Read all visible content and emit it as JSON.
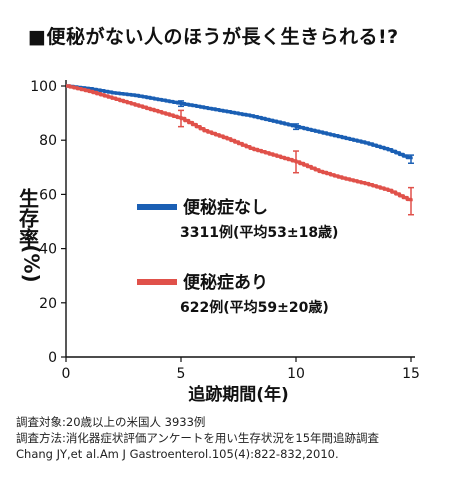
{
  "title": "■便秘がない人のほうが長く生きられる!?",
  "ylabel": {
    "main": "生存率",
    "unit": "(%)"
  },
  "notes": [
    "調査対象:20歳以上の米国人 3933例",
    "調査方法:消化器症状評価アンケートを用い生存状況を15年間追跡調査",
    "Chang JY,et al.Am J Gastroenterol.105(4):822-832,2010."
  ],
  "chart_data": {
    "type": "line",
    "xlabel": "追跡期間(年)",
    "ylabel": "生存率(%)",
    "xlim": [
      0,
      15
    ],
    "ylim": [
      0,
      100
    ],
    "xticks": [
      0,
      5,
      10,
      15
    ],
    "yticks": [
      0,
      20,
      40,
      60,
      80,
      100
    ],
    "grid": false,
    "legend_position": "center",
    "series": [
      {
        "name": "便秘症なし",
        "subtitle": "3311例(平均53±18歳)",
        "color": "#1a5fb4",
        "x": [
          0,
          1,
          2,
          3,
          4,
          5,
          6,
          7,
          8,
          9,
          10,
          11,
          12,
          13,
          14,
          15
        ],
        "y": [
          100,
          99,
          97.5,
          96.5,
          95,
          93.5,
          92,
          90.5,
          89,
          87,
          85,
          83,
          81,
          79,
          76.5,
          73
        ],
        "error_bars": [
          {
            "x": 5,
            "y": 93.5,
            "err": 1
          },
          {
            "x": 10,
            "y": 85,
            "err": 1
          },
          {
            "x": 15,
            "y": 73,
            "err": 1.5
          }
        ]
      },
      {
        "name": "便秘症あり",
        "subtitle": "622例(平均59±20歳)",
        "color": "#e0514a",
        "x": [
          0,
          1,
          2,
          3,
          4,
          5,
          6,
          7,
          8,
          9,
          10,
          11,
          12,
          13,
          14,
          15
        ],
        "y": [
          100,
          98,
          95.5,
          93,
          90.5,
          88,
          83.5,
          80.5,
          77,
          74.5,
          72,
          68.5,
          66,
          64,
          61.5,
          57.5
        ],
        "error_bars": [
          {
            "x": 5,
            "y": 88,
            "err": 3
          },
          {
            "x": 10,
            "y": 72,
            "err": 4
          },
          {
            "x": 15,
            "y": 57.5,
            "err": 5
          }
        ]
      }
    ]
  }
}
